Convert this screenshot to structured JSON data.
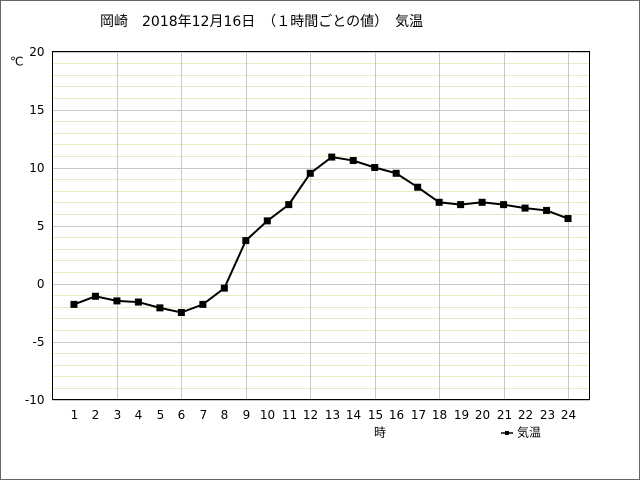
{
  "chart_data": {
    "type": "line",
    "title": "岡崎　2018年12月16日　（１時間ごとの値）　気温",
    "y_unit": "℃",
    "x_label": "時",
    "x": [
      1,
      2,
      3,
      4,
      5,
      6,
      7,
      8,
      9,
      10,
      11,
      12,
      13,
      14,
      15,
      16,
      17,
      18,
      19,
      20,
      21,
      22,
      23,
      24
    ],
    "series": [
      {
        "name": "気温",
        "color": "#000000",
        "values": [
          -1.8,
          -1.1,
          -1.5,
          -1.6,
          -2.1,
          -2.5,
          -1.8,
          -0.4,
          3.7,
          5.4,
          6.8,
          9.5,
          10.9,
          10.6,
          10.0,
          9.5,
          8.3,
          7.0,
          6.8,
          7.0,
          6.8,
          6.5,
          6.3,
          5.6
        ]
      }
    ],
    "xlim": [
      0,
      25
    ],
    "xticks": [
      1,
      2,
      3,
      4,
      5,
      6,
      7,
      8,
      9,
      10,
      11,
      12,
      13,
      14,
      15,
      16,
      17,
      18,
      19,
      20,
      21,
      22,
      23,
      24
    ],
    "ylim": [
      -10,
      20
    ],
    "yticks": [
      -10,
      -5,
      0,
      5,
      10,
      15,
      20
    ],
    "grid": true
  }
}
